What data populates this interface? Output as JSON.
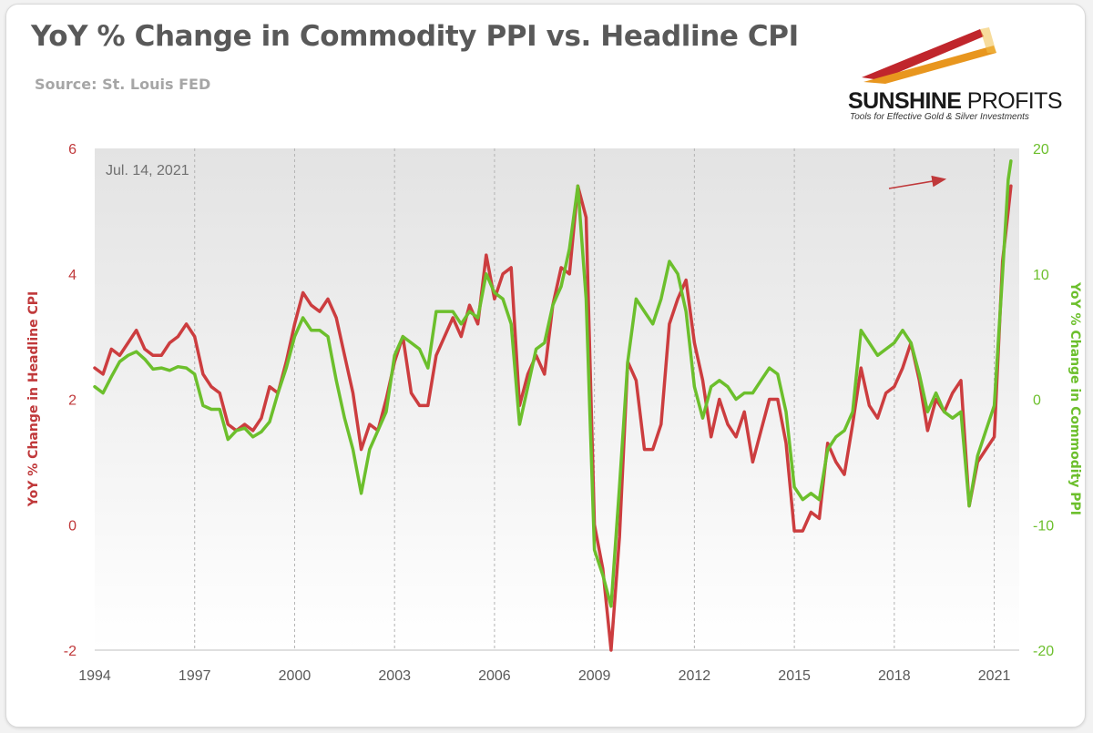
{
  "header": {
    "title": "YoY % Change in Commodity PPI vs. Headline CPI",
    "source": "Source: St. Louis FED"
  },
  "logo": {
    "brand_bold": "SUNSHINE",
    "brand_light": "PROFITS",
    "tagline": "Tools for Effective Gold & Silver Investments"
  },
  "chart_data": {
    "type": "line",
    "annotation": "Jul. 14, 2021",
    "x_ticks": [
      "1994",
      "1997",
      "2000",
      "2003",
      "2006",
      "2009",
      "2012",
      "2015",
      "2018",
      "2021"
    ],
    "xlim": [
      1994.0,
      2021.75
    ],
    "left_axis": {
      "label": "YoY % Change in Headline CPI",
      "ylim": [
        -2,
        6
      ],
      "ticks": [
        -2,
        0,
        2,
        4,
        6
      ],
      "color": "#c0393b"
    },
    "right_axis": {
      "label": "YoY % Change in Commodity PPI",
      "ylim": [
        -20,
        20
      ],
      "ticks": [
        -20,
        -10,
        0,
        10,
        20
      ],
      "color": "#6cbf2c"
    },
    "grid": "vertical dashed",
    "legend": "none (axis labels colored by series)",
    "series": [
      {
        "name": "YoY % Change in Headline CPI",
        "axis": "left",
        "color": "#cc3d3f",
        "points": [
          [
            1994.0,
            2.5
          ],
          [
            1994.25,
            2.4
          ],
          [
            1994.5,
            2.8
          ],
          [
            1994.75,
            2.7
          ],
          [
            1995.0,
            2.9
          ],
          [
            1995.25,
            3.1
          ],
          [
            1995.5,
            2.8
          ],
          [
            1995.75,
            2.7
          ],
          [
            1996.0,
            2.7
          ],
          [
            1996.25,
            2.9
          ],
          [
            1996.5,
            3.0
          ],
          [
            1996.75,
            3.2
          ],
          [
            1997.0,
            3.0
          ],
          [
            1997.25,
            2.4
          ],
          [
            1997.5,
            2.2
          ],
          [
            1997.75,
            2.1
          ],
          [
            1998.0,
            1.6
          ],
          [
            1998.25,
            1.5
          ],
          [
            1998.5,
            1.6
          ],
          [
            1998.75,
            1.5
          ],
          [
            1999.0,
            1.7
          ],
          [
            1999.25,
            2.2
          ],
          [
            1999.5,
            2.1
          ],
          [
            1999.75,
            2.6
          ],
          [
            2000.0,
            3.2
          ],
          [
            2000.25,
            3.7
          ],
          [
            2000.5,
            3.5
          ],
          [
            2000.75,
            3.4
          ],
          [
            2001.0,
            3.6
          ],
          [
            2001.25,
            3.3
          ],
          [
            2001.5,
            2.7
          ],
          [
            2001.75,
            2.1
          ],
          [
            2002.0,
            1.2
          ],
          [
            2002.25,
            1.6
          ],
          [
            2002.5,
            1.5
          ],
          [
            2002.75,
            2.0
          ],
          [
            2003.0,
            2.6
          ],
          [
            2003.25,
            3.0
          ],
          [
            2003.5,
            2.1
          ],
          [
            2003.75,
            1.9
          ],
          [
            2004.0,
            1.9
          ],
          [
            2004.25,
            2.7
          ],
          [
            2004.5,
            3.0
          ],
          [
            2004.75,
            3.3
          ],
          [
            2005.0,
            3.0
          ],
          [
            2005.25,
            3.5
          ],
          [
            2005.5,
            3.2
          ],
          [
            2005.75,
            4.3
          ],
          [
            2006.0,
            3.6
          ],
          [
            2006.25,
            4.0
          ],
          [
            2006.5,
            4.1
          ],
          [
            2006.75,
            1.9
          ],
          [
            2007.0,
            2.4
          ],
          [
            2007.25,
            2.7
          ],
          [
            2007.5,
            2.4
          ],
          [
            2007.75,
            3.5
          ],
          [
            2008.0,
            4.1
          ],
          [
            2008.25,
            4.0
          ],
          [
            2008.5,
            5.4
          ],
          [
            2008.75,
            4.9
          ],
          [
            2009.0,
            0.0
          ],
          [
            2009.25,
            -0.7
          ],
          [
            2009.5,
            -2.0
          ],
          [
            2009.75,
            -0.2
          ],
          [
            2010.0,
            2.6
          ],
          [
            2010.25,
            2.3
          ],
          [
            2010.5,
            1.2
          ],
          [
            2010.75,
            1.2
          ],
          [
            2011.0,
            1.6
          ],
          [
            2011.25,
            3.2
          ],
          [
            2011.5,
            3.6
          ],
          [
            2011.75,
            3.9
          ],
          [
            2012.0,
            2.9
          ],
          [
            2012.25,
            2.3
          ],
          [
            2012.5,
            1.4
          ],
          [
            2012.75,
            2.0
          ],
          [
            2013.0,
            1.6
          ],
          [
            2013.25,
            1.4
          ],
          [
            2013.5,
            1.8
          ],
          [
            2013.75,
            1.0
          ],
          [
            2014.0,
            1.5
          ],
          [
            2014.25,
            2.0
          ],
          [
            2014.5,
            2.0
          ],
          [
            2014.75,
            1.3
          ],
          [
            2015.0,
            -0.1
          ],
          [
            2015.25,
            -0.1
          ],
          [
            2015.5,
            0.2
          ],
          [
            2015.75,
            0.1
          ],
          [
            2016.0,
            1.3
          ],
          [
            2016.25,
            1.0
          ],
          [
            2016.5,
            0.8
          ],
          [
            2016.75,
            1.6
          ],
          [
            2017.0,
            2.5
          ],
          [
            2017.25,
            1.9
          ],
          [
            2017.5,
            1.7
          ],
          [
            2017.75,
            2.1
          ],
          [
            2018.0,
            2.2
          ],
          [
            2018.25,
            2.5
          ],
          [
            2018.5,
            2.9
          ],
          [
            2018.75,
            2.3
          ],
          [
            2019.0,
            1.5
          ],
          [
            2019.25,
            2.0
          ],
          [
            2019.5,
            1.8
          ],
          [
            2019.75,
            2.1
          ],
          [
            2020.0,
            2.3
          ],
          [
            2020.25,
            0.3
          ],
          [
            2020.5,
            1.0
          ],
          [
            2020.75,
            1.2
          ],
          [
            2021.0,
            1.4
          ],
          [
            2021.25,
            4.2
          ],
          [
            2021.42,
            5.0
          ],
          [
            2021.5,
            5.4
          ]
        ]
      },
      {
        "name": "YoY % Change in Commodity PPI",
        "axis": "right",
        "color": "#6cbf2c",
        "points": [
          [
            1994.0,
            1.0
          ],
          [
            1994.25,
            0.5
          ],
          [
            1994.5,
            1.8
          ],
          [
            1994.75,
            3.0
          ],
          [
            1995.0,
            3.5
          ],
          [
            1995.25,
            3.8
          ],
          [
            1995.5,
            3.2
          ],
          [
            1995.75,
            2.4
          ],
          [
            1996.0,
            2.5
          ],
          [
            1996.25,
            2.3
          ],
          [
            1996.5,
            2.6
          ],
          [
            1996.75,
            2.5
          ],
          [
            1997.0,
            2.0
          ],
          [
            1997.25,
            -0.5
          ],
          [
            1997.5,
            -0.8
          ],
          [
            1997.75,
            -0.8
          ],
          [
            1998.0,
            -3.2
          ],
          [
            1998.25,
            -2.5
          ],
          [
            1998.5,
            -2.3
          ],
          [
            1998.75,
            -3.0
          ],
          [
            1999.0,
            -2.6
          ],
          [
            1999.25,
            -1.8
          ],
          [
            1999.5,
            0.5
          ],
          [
            1999.75,
            2.5
          ],
          [
            2000.0,
            5.0
          ],
          [
            2000.25,
            6.5
          ],
          [
            2000.5,
            5.5
          ],
          [
            2000.75,
            5.5
          ],
          [
            2001.0,
            5.0
          ],
          [
            2001.25,
            1.5
          ],
          [
            2001.5,
            -1.5
          ],
          [
            2001.75,
            -4.0
          ],
          [
            2002.0,
            -7.5
          ],
          [
            2002.25,
            -4.0
          ],
          [
            2002.5,
            -2.5
          ],
          [
            2002.75,
            -1.0
          ],
          [
            2003.0,
            3.5
          ],
          [
            2003.25,
            5.0
          ],
          [
            2003.5,
            4.5
          ],
          [
            2003.75,
            4.0
          ],
          [
            2004.0,
            2.5
          ],
          [
            2004.25,
            7.0
          ],
          [
            2004.5,
            7.0
          ],
          [
            2004.75,
            7.0
          ],
          [
            2005.0,
            6.0
          ],
          [
            2005.25,
            7.0
          ],
          [
            2005.5,
            6.5
          ],
          [
            2005.75,
            10.0
          ],
          [
            2006.0,
            8.5
          ],
          [
            2006.25,
            8.0
          ],
          [
            2006.5,
            6.0
          ],
          [
            2006.75,
            -2.0
          ],
          [
            2007.0,
            1.0
          ],
          [
            2007.25,
            4.0
          ],
          [
            2007.5,
            4.5
          ],
          [
            2007.75,
            7.5
          ],
          [
            2008.0,
            9.0
          ],
          [
            2008.25,
            12.0
          ],
          [
            2008.5,
            17.0
          ],
          [
            2008.75,
            8.0
          ],
          [
            2009.0,
            -12.0
          ],
          [
            2009.25,
            -14.0
          ],
          [
            2009.5,
            -16.5
          ],
          [
            2009.75,
            -7.0
          ],
          [
            2010.0,
            3.0
          ],
          [
            2010.25,
            8.0
          ],
          [
            2010.5,
            7.0
          ],
          [
            2010.75,
            6.0
          ],
          [
            2011.0,
            8.0
          ],
          [
            2011.25,
            11.0
          ],
          [
            2011.5,
            10.0
          ],
          [
            2011.75,
            7.0
          ],
          [
            2012.0,
            1.0
          ],
          [
            2012.25,
            -1.5
          ],
          [
            2012.5,
            1.0
          ],
          [
            2012.75,
            1.5
          ],
          [
            2013.0,
            1.0
          ],
          [
            2013.25,
            0.0
          ],
          [
            2013.5,
            0.5
          ],
          [
            2013.75,
            0.5
          ],
          [
            2014.0,
            1.5
          ],
          [
            2014.25,
            2.5
          ],
          [
            2014.5,
            2.0
          ],
          [
            2014.75,
            -1.0
          ],
          [
            2015.0,
            -7.0
          ],
          [
            2015.25,
            -8.0
          ],
          [
            2015.5,
            -7.5
          ],
          [
            2015.75,
            -8.0
          ],
          [
            2016.0,
            -4.0
          ],
          [
            2016.25,
            -3.0
          ],
          [
            2016.5,
            -2.5
          ],
          [
            2016.75,
            -1.0
          ],
          [
            2017.0,
            5.5
          ],
          [
            2017.25,
            4.5
          ],
          [
            2017.5,
            3.5
          ],
          [
            2017.75,
            4.0
          ],
          [
            2018.0,
            4.5
          ],
          [
            2018.25,
            5.5
          ],
          [
            2018.5,
            4.5
          ],
          [
            2018.75,
            2.0
          ],
          [
            2019.0,
            -1.0
          ],
          [
            2019.25,
            0.5
          ],
          [
            2019.5,
            -1.0
          ],
          [
            2019.75,
            -1.5
          ],
          [
            2020.0,
            -1.0
          ],
          [
            2020.25,
            -8.5
          ],
          [
            2020.5,
            -4.5
          ],
          [
            2020.75,
            -2.5
          ],
          [
            2021.0,
            -0.5
          ],
          [
            2021.25,
            10.0
          ],
          [
            2021.42,
            17.5
          ],
          [
            2021.5,
            19.0
          ]
        ]
      }
    ]
  }
}
